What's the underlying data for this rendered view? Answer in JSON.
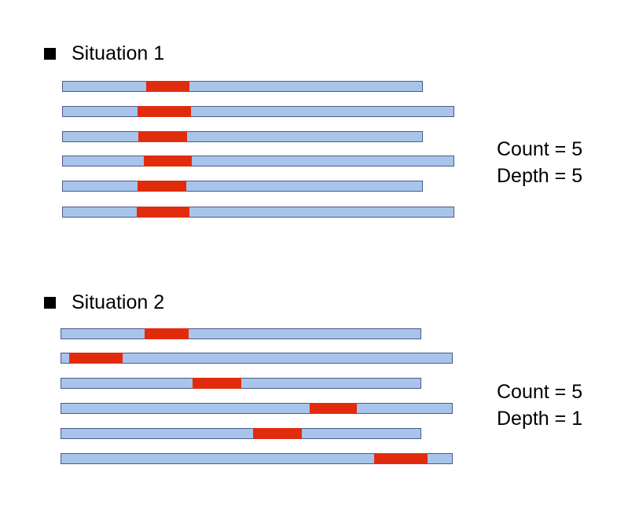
{
  "colors": {
    "read_fill": "#a9c4ea",
    "read_border": "#4a5a8a",
    "highlight": "#e02c0c",
    "bullet": "#000000"
  },
  "situations": [
    {
      "title": "Situation 1",
      "count_text": "Count = 5",
      "depth_text": "Depth = 5"
    },
    {
      "title": "Situation 2",
      "count_text": "Count = 5",
      "depth_text": "Depth = 1"
    }
  ]
}
